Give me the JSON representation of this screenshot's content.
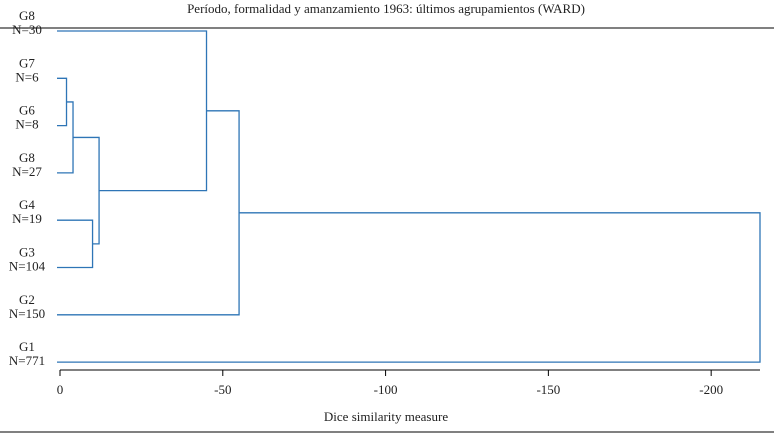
{
  "chart_data": {
    "type": "dendrogram",
    "title": "Período, formalidad y amanzamiento 1963: últimos agrupamientos (WARD)",
    "xlabel": "Dice similarity measure",
    "xlim": [
      0,
      -215
    ],
    "xticks": [
      0,
      -50,
      -100,
      -150,
      -200
    ],
    "color": "#2e75b6",
    "tree": {
      "height": -215,
      "children": [
        {
          "height": -55,
          "children": [
            {
              "height": -45,
              "children": [
                {
                  "label": "G8",
                  "n": "N=30"
                },
                {
                  "height": -12,
                  "children": [
                    {
                      "height": -4,
                      "children": [
                        {
                          "height": -2,
                          "children": [
                            {
                              "label": "G7",
                              "n": "N=6"
                            },
                            {
                              "label": "G6",
                              "n": "N=8"
                            }
                          ]
                        },
                        {
                          "label": "G8",
                          "n": "N=27"
                        }
                      ]
                    },
                    {
                      "height": -10,
                      "children": [
                        {
                          "label": "G4",
                          "n": "N=19"
                        },
                        {
                          "label": "G3",
                          "n": "N=104"
                        }
                      ]
                    }
                  ]
                }
              ]
            },
            {
              "label": "G2",
              "n": "N=150"
            }
          ]
        },
        {
          "label": "G1",
          "n": "N=771"
        }
      ]
    }
  }
}
